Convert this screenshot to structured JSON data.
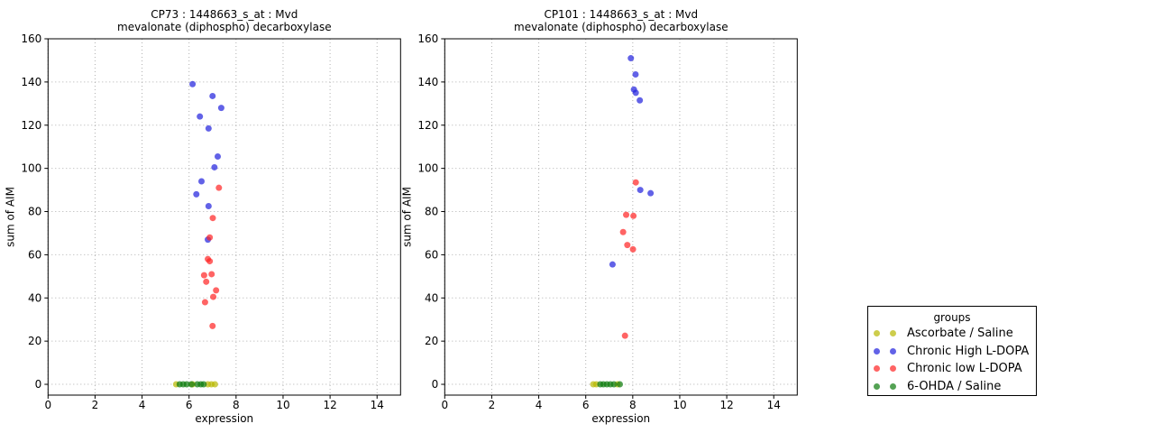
{
  "legend": {
    "title": "groups",
    "entries": [
      {
        "label": "Ascorbate / Saline",
        "color": "#b8b800"
      },
      {
        "label": "Chronic High L-DOPA",
        "color": "#2020dd"
      },
      {
        "label": "Chronic low L-DOPA",
        "color": "#ff2222"
      },
      {
        "label": "6-OHDA / Saline",
        "color": "#0c7a0c"
      }
    ]
  },
  "style": {
    "grid_color": "#b0b0b0",
    "axis_color": "#000000",
    "text_color": "#000000",
    "marker_opacity": 0.7
  },
  "chart_data": [
    {
      "type": "scatter",
      "title_line1": "CP73 : 1448663_s_at : Mvd",
      "title_line2": "mevalonate (diphospho) decarboxylase",
      "xlabel": "expression",
      "ylabel": "sum of AIM",
      "xlim": [
        0,
        15
      ],
      "ylim": [
        -5,
        160
      ],
      "xticks": [
        0,
        2,
        4,
        6,
        8,
        10,
        12,
        14
      ],
      "yticks": [
        0,
        20,
        40,
        60,
        80,
        100,
        120,
        140,
        160
      ],
      "grid": true,
      "series": [
        {
          "name": "Ascorbate / Saline",
          "color": "#b8b800",
          "points": [
            [
              5.45,
              0
            ],
            [
              6.15,
              0
            ],
            [
              6.8,
              0
            ],
            [
              6.95,
              0
            ],
            [
              7.1,
              0
            ]
          ]
        },
        {
          "name": "Chronic High L-DOPA",
          "color": "#2020dd",
          "points": [
            [
              6.15,
              139
            ],
            [
              7.0,
              133.5
            ],
            [
              7.37,
              128
            ],
            [
              6.46,
              124
            ],
            [
              6.83,
              118.5
            ],
            [
              7.22,
              105.5
            ],
            [
              7.08,
              100.5
            ],
            [
              6.53,
              94
            ],
            [
              6.31,
              88
            ],
            [
              6.83,
              82.5
            ],
            [
              6.8,
              67
            ]
          ]
        },
        {
          "name": "Chronic low L-DOPA",
          "color": "#ff2222",
          "points": [
            [
              7.27,
              91
            ],
            [
              7.01,
              77
            ],
            [
              6.88,
              68
            ],
            [
              6.8,
              58
            ],
            [
              6.88,
              57
            ],
            [
              6.64,
              50.5
            ],
            [
              6.96,
              51
            ],
            [
              6.73,
              47.5
            ],
            [
              7.15,
              43.5
            ],
            [
              7.03,
              40.5
            ],
            [
              6.68,
              38
            ],
            [
              7.0,
              27
            ]
          ]
        },
        {
          "name": "6-OHDA / Saline",
          "color": "#0c7a0c",
          "points": [
            [
              5.6,
              0
            ],
            [
              5.75,
              0
            ],
            [
              5.9,
              0
            ],
            [
              6.1,
              0
            ],
            [
              6.35,
              0
            ],
            [
              6.5,
              0
            ],
            [
              6.62,
              0
            ]
          ]
        }
      ]
    },
    {
      "type": "scatter",
      "title_line1": "CP101 : 1448663_s_at : Mvd",
      "title_line2": "mevalonate (diphospho) decarboxylase",
      "xlabel": "expression",
      "ylabel": "sum of AIM",
      "xlim": [
        0,
        15
      ],
      "ylim": [
        -5,
        160
      ],
      "xticks": [
        0,
        2,
        4,
        6,
        8,
        10,
        12,
        14
      ],
      "yticks": [
        0,
        20,
        40,
        60,
        80,
        100,
        120,
        140,
        160
      ],
      "grid": true,
      "series": [
        {
          "name": "Ascorbate / Saline",
          "color": "#b8b800",
          "points": [
            [
              6.32,
              0
            ],
            [
              6.45,
              0
            ],
            [
              7.35,
              0
            ]
          ]
        },
        {
          "name": "Chronic High L-DOPA",
          "color": "#2020dd",
          "points": [
            [
              7.92,
              151
            ],
            [
              8.12,
              143.5
            ],
            [
              8.05,
              136.5
            ],
            [
              8.13,
              135
            ],
            [
              8.3,
              131.5
            ],
            [
              8.32,
              90
            ],
            [
              8.76,
              88.5
            ],
            [
              7.14,
              55.5
            ]
          ]
        },
        {
          "name": "Chronic low L-DOPA",
          "color": "#ff2222",
          "points": [
            [
              8.13,
              93.5
            ],
            [
              7.72,
              78.5
            ],
            [
              8.03,
              78
            ],
            [
              7.59,
              70.5
            ],
            [
              7.77,
              64.5
            ],
            [
              8.01,
              62.5
            ],
            [
              7.67,
              22.5
            ]
          ]
        },
        {
          "name": "6-OHDA / Saline",
          "color": "#0c7a0c",
          "points": [
            [
              6.62,
              0
            ],
            [
              6.75,
              0
            ],
            [
              6.9,
              0
            ],
            [
              7.05,
              0
            ],
            [
              7.2,
              0
            ],
            [
              7.45,
              0
            ]
          ]
        }
      ]
    }
  ]
}
